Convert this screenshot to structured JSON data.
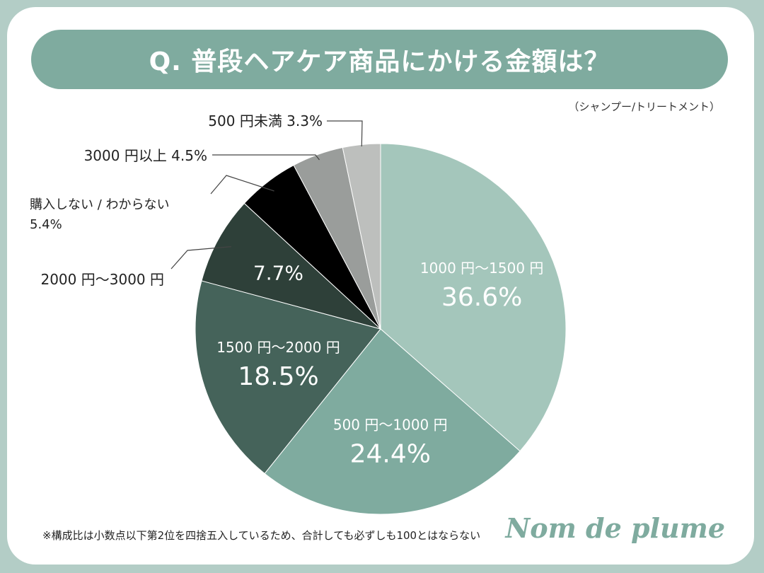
{
  "title": "Q. 普段ヘアケア商品にかける金額は？",
  "subtitle": "（シャンプー/トリートメント）",
  "footnote": "※構成比は小数点以下第2位を四捨五入しているため、合計しても必ずしも100とはならない",
  "brand": "Nom de plume",
  "chart_data": {
    "type": "pie",
    "title": "Q. 普段ヘアケア商品にかける金額は？",
    "subtitle": "（シャンプー/トリートメント）",
    "unit": "%",
    "slices": [
      {
        "label": "1000 円〜1500 円",
        "value": 36.6,
        "value_label": "36.6%",
        "color": "#a4c6bb"
      },
      {
        "label": "500 円〜1000 円",
        "value": 24.4,
        "value_label": "24.4%",
        "color": "#7fab9f"
      },
      {
        "label": "1500 円〜2000 円",
        "value": 18.5,
        "value_label": "18.5%",
        "color": "#45635a"
      },
      {
        "label": "2000 円〜3000 円",
        "value": 7.7,
        "value_label": "7.7%",
        "color": "#2e4039"
      },
      {
        "label": "購入しない / わからない",
        "value": 5.4,
        "value_label": "5.4%",
        "color": "#000000"
      },
      {
        "label": "3000 円以上",
        "value": 4.5,
        "value_label": "4.5%",
        "color": "#9a9d9b"
      },
      {
        "label": "500 円未満",
        "value": 3.3,
        "value_label": "3.3%",
        "color": "#bdbfbd"
      }
    ]
  }
}
